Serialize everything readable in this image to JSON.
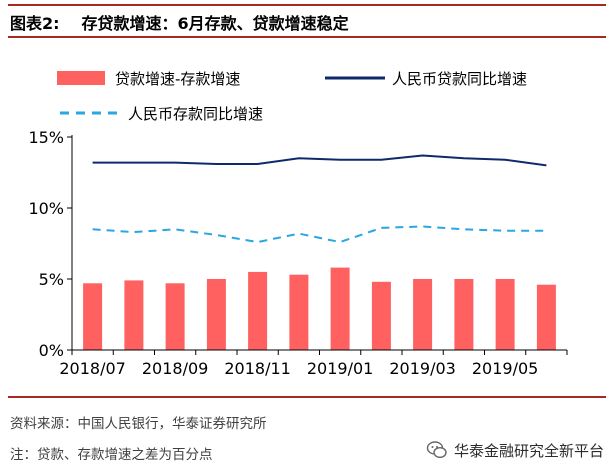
{
  "figure": {
    "label": "图表2:",
    "title": "存贷款增速：6月存款、贷款增速稳定"
  },
  "source": "资料来源：中国人民银行，华泰证券研究所",
  "note": "注：贷款、存款增速之差为百分点",
  "watermark": "华泰金融研究全新平台",
  "colors": {
    "accent_rule": "#a62a22",
    "bar": "#ff6161",
    "loan_line": "#0f2a6b",
    "deposit_line": "#2aa6e0"
  },
  "chart_data": {
    "type": "bar",
    "categories": [
      "2018/07",
      "2018/08",
      "2018/09",
      "2018/10",
      "2018/11",
      "2018/12",
      "2019/01",
      "2019/02",
      "2019/03",
      "2019/04",
      "2019/05",
      "2019/06"
    ],
    "x_tick_labels": [
      "2018/07",
      "2018/09",
      "2018/11",
      "2019/01",
      "2019/03",
      "2019/05"
    ],
    "y_tick_labels": [
      "0%",
      "5%",
      "10%",
      "15%"
    ],
    "ylim": [
      0,
      15
    ],
    "grid": false,
    "legend_position": "top",
    "series": [
      {
        "name": "贷款增速-存款增速",
        "type": "bar",
        "color": "#ff6161",
        "values": [
          4.7,
          4.9,
          4.7,
          5.0,
          5.5,
          5.3,
          5.8,
          4.8,
          5.0,
          5.0,
          5.0,
          4.6
        ]
      },
      {
        "name": "人民币贷款同比增速",
        "type": "line",
        "style": "solid",
        "color": "#0f2a6b",
        "values": [
          13.2,
          13.2,
          13.2,
          13.1,
          13.1,
          13.5,
          13.4,
          13.4,
          13.7,
          13.5,
          13.4,
          13.0
        ]
      },
      {
        "name": "人民币存款同比增速",
        "type": "line",
        "style": "dashed",
        "color": "#2aa6e0",
        "values": [
          8.5,
          8.3,
          8.5,
          8.1,
          7.6,
          8.2,
          7.6,
          8.6,
          8.7,
          8.5,
          8.4,
          8.4
        ]
      }
    ]
  }
}
